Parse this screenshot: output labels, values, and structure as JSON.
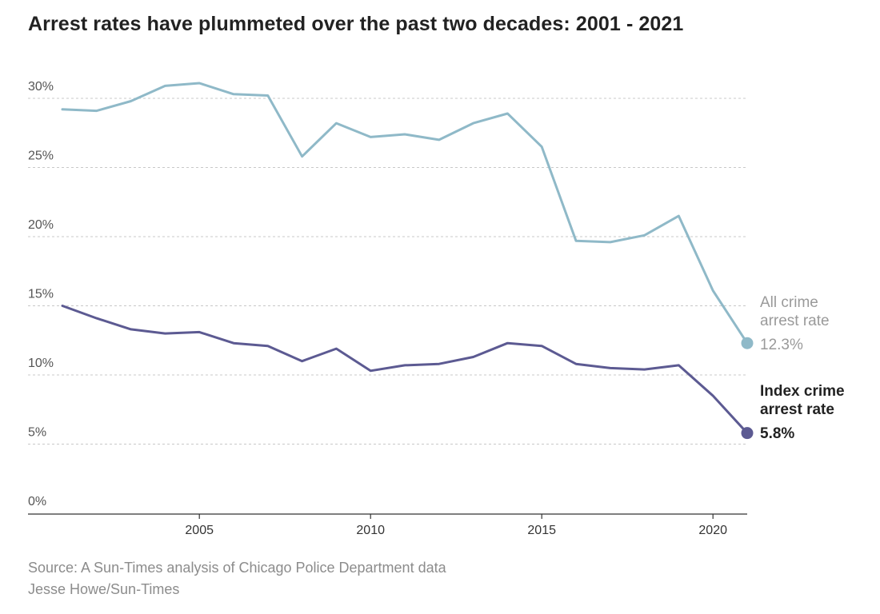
{
  "title": "Arrest rates have plummeted over the past two decades: 2001 - 2021",
  "footer": {
    "source": "Source: A Sun-Times analysis of Chicago Police Department data",
    "credit": "Jesse Howe/Sun-Times"
  },
  "chart_data": {
    "type": "line",
    "title": "Arrest rates have plummeted over the past two decades: 2001 - 2021",
    "xlabel": "",
    "ylabel": "",
    "xlim": [
      2001,
      2021
    ],
    "ylim": [
      0,
      30
    ],
    "x_ticks": [
      2005,
      2010,
      2015,
      2020
    ],
    "y_ticks": [
      {
        "value": 0,
        "label": "0%"
      },
      {
        "value": 5,
        "label": "5%"
      },
      {
        "value": 10,
        "label": "10%"
      },
      {
        "value": 15,
        "label": "15%"
      },
      {
        "value": 20,
        "label": "20%"
      },
      {
        "value": 25,
        "label": "25%"
      },
      {
        "value": 30,
        "label": "30%"
      }
    ],
    "grid": "horizontal dashed",
    "x": [
      2001,
      2002,
      2003,
      2004,
      2005,
      2006,
      2007,
      2008,
      2009,
      2010,
      2011,
      2012,
      2013,
      2014,
      2015,
      2016,
      2017,
      2018,
      2019,
      2020,
      2021
    ],
    "series": [
      {
        "name": "All crime arrest rate",
        "label_lines": [
          "All crime",
          "arrest rate"
        ],
        "end_label": "12.3%",
        "color": "#8fb9c8",
        "label_color": "#9a9a9a",
        "values": [
          29.2,
          29.1,
          29.8,
          30.9,
          31.1,
          30.3,
          30.2,
          25.8,
          28.2,
          27.2,
          27.4,
          27.0,
          28.2,
          28.9,
          26.5,
          19.7,
          19.6,
          20.1,
          21.5,
          16.1,
          12.3
        ]
      },
      {
        "name": "Index crime arrest rate",
        "label_lines": [
          "Index crime",
          "arrest rate"
        ],
        "end_label": "5.8%",
        "color": "#5c5a92",
        "label_color": "#222222",
        "values": [
          15.0,
          14.1,
          13.3,
          13.0,
          13.1,
          12.3,
          12.1,
          11.0,
          11.9,
          10.3,
          10.7,
          10.8,
          11.3,
          12.3,
          12.1,
          10.8,
          10.5,
          10.4,
          10.7,
          8.5,
          5.8
        ]
      }
    ]
  }
}
